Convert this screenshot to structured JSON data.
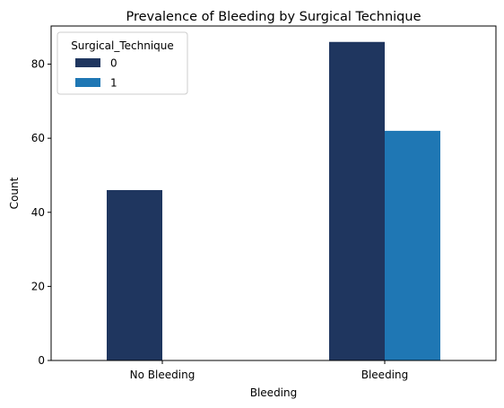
{
  "chart_data": {
    "type": "bar",
    "title": "Prevalence of Bleeding by Surgical Technique",
    "xlabel": "Bleeding",
    "ylabel": "Count",
    "categories": [
      "No Bleeding",
      "Bleeding"
    ],
    "series": [
      {
        "name": "0",
        "values": [
          46,
          86
        ],
        "color": "#1f365f"
      },
      {
        "name": "1",
        "values": [
          0,
          62
        ],
        "color": "#1f77b4"
      }
    ],
    "ylim": [
      0,
      90.3
    ],
    "yticks": [
      0,
      20,
      40,
      60,
      80
    ],
    "legend": {
      "title": "Surgical_Technique",
      "placement": "top-left"
    },
    "grid": false
  }
}
